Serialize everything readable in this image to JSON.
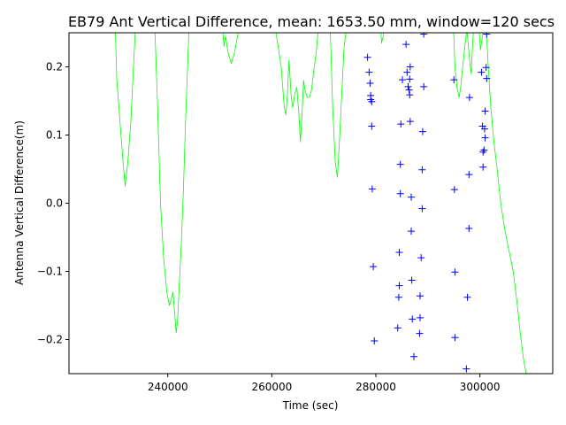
{
  "chart_data": {
    "type": "line",
    "title": "EB79 Ant Vertical Difference, mean: 1653.50 mm, window=120 secs",
    "xlabel": "Time (sec)",
    "ylabel": "Antenna Vertical Difference(m)",
    "xlim": [
      221000,
      314000
    ],
    "ylim": [
      -0.25,
      0.25
    ],
    "xticks": [
      {
        "value": 240000,
        "label": "240000"
      },
      {
        "value": 260000,
        "label": "260000"
      },
      {
        "value": 280000,
        "label": "280000"
      },
      {
        "value": 300000,
        "label": "300000"
      }
    ],
    "yticks": [
      {
        "value": -0.2,
        "label": "−0.2"
      },
      {
        "value": -0.1,
        "label": "−0.1"
      },
      {
        "value": 0.0,
        "label": "0.0"
      },
      {
        "value": 0.1,
        "label": "0.1"
      },
      {
        "value": 0.2,
        "label": "0.2"
      }
    ],
    "grid": false,
    "series": [
      {
        "type": "line",
        "color": "#00ff00",
        "x": [
          229900,
          230200,
          230600,
          231000,
          231400,
          231800,
          232300,
          232900,
          233400,
          233800,
          237500,
          238000,
          238600,
          239200,
          239800,
          240300,
          240700,
          241000,
          241300,
          241600,
          241900,
          242200,
          242600,
          243000,
          243400,
          243800,
          244100,
          250500,
          250800,
          251100,
          251600,
          252200,
          252800,
          253400,
          253900,
          260600,
          261000,
          261400,
          261800,
          262100,
          262400,
          262700,
          263000,
          263300,
          263700,
          264000,
          264400,
          264800,
          265200,
          265500,
          265800,
          266100,
          266400,
          266800,
          267200,
          267600,
          268000,
          268500,
          269000,
          271200,
          271700,
          272200,
          272600,
          273000,
          273500,
          273900,
          274400,
          280900,
          281100,
          281400,
          281700,
          294900,
          295200,
          295600,
          296000,
          296300,
          296700,
          297100,
          297500,
          297900,
          298300,
          298800,
          299800,
          300100,
          300400,
          300800,
          301200,
          301600,
          302100,
          302700,
          303300,
          304000,
          304800,
          305600,
          306400,
          307200,
          307900,
          308400,
          308900,
          309100
        ],
        "y": [
          0.26,
          0.18,
          0.14,
          0.1,
          0.06,
          0.025,
          0.06,
          0.12,
          0.2,
          0.26,
          0.26,
          0.15,
          0.0,
          -0.08,
          -0.13,
          -0.15,
          -0.14,
          -0.13,
          -0.16,
          -0.19,
          -0.17,
          -0.12,
          -0.06,
          0.02,
          0.12,
          0.2,
          0.26,
          0.26,
          0.23,
          0.245,
          0.22,
          0.205,
          0.22,
          0.245,
          0.26,
          0.26,
          0.24,
          0.22,
          0.2,
          0.17,
          0.14,
          0.13,
          0.16,
          0.21,
          0.16,
          0.14,
          0.16,
          0.17,
          0.13,
          0.09,
          0.13,
          0.18,
          0.165,
          0.155,
          0.155,
          0.165,
          0.19,
          0.22,
          0.26,
          0.26,
          0.14,
          0.06,
          0.038,
          0.09,
          0.17,
          0.23,
          0.26,
          0.26,
          0.235,
          0.245,
          0.26,
          0.26,
          0.2,
          0.17,
          0.155,
          0.17,
          0.2,
          0.23,
          0.255,
          0.22,
          0.19,
          0.26,
          0.26,
          0.225,
          0.24,
          0.26,
          0.26,
          0.2,
          0.14,
          0.09,
          0.05,
          0.0,
          -0.04,
          -0.07,
          -0.1,
          -0.15,
          -0.2,
          -0.23,
          -0.25,
          -0.26
        ]
      },
      {
        "type": "scatter",
        "marker": "+",
        "color": "#0000ff",
        "points": [
          [
            278400,
            0.214
          ],
          [
            278700,
            0.192
          ],
          [
            278900,
            0.176
          ],
          [
            279000,
            0.158
          ],
          [
            279000,
            0.152
          ],
          [
            279200,
            0.149
          ],
          [
            279200,
            0.113
          ],
          [
            279300,
            0.021
          ],
          [
            279500,
            -0.093
          ],
          [
            279700,
            -0.202
          ],
          [
            284200,
            -0.183
          ],
          [
            284400,
            -0.138
          ],
          [
            284500,
            -0.121
          ],
          [
            284500,
            -0.072
          ],
          [
            284700,
            0.014
          ],
          [
            284700,
            0.057
          ],
          [
            284800,
            0.116
          ],
          [
            285100,
            0.181
          ],
          [
            285800,
            0.233
          ],
          [
            286000,
            0.192
          ],
          [
            286200,
            0.171
          ],
          [
            286400,
            0.166
          ],
          [
            286500,
            0.182
          ],
          [
            286500,
            0.159
          ],
          [
            286600,
            0.2
          ],
          [
            286600,
            0.12
          ],
          [
            286800,
            0.009
          ],
          [
            286800,
            -0.041
          ],
          [
            286900,
            -0.113
          ],
          [
            287000,
            -0.17
          ],
          [
            287300,
            -0.225
          ],
          [
            288400,
            -0.191
          ],
          [
            288500,
            -0.136
          ],
          [
            288500,
            -0.168
          ],
          [
            288700,
            -0.08
          ],
          [
            288900,
            -0.008
          ],
          [
            288900,
            0.049
          ],
          [
            289000,
            0.105
          ],
          [
            289200,
            0.171
          ],
          [
            289200,
            0.248
          ],
          [
            295000,
            0.181
          ],
          [
            295100,
            0.02
          ],
          [
            295200,
            -0.101
          ],
          [
            295200,
            -0.197
          ],
          [
            297400,
            -0.243
          ],
          [
            297600,
            -0.138
          ],
          [
            297900,
            -0.037
          ],
          [
            297900,
            0.042
          ],
          [
            298000,
            0.155
          ],
          [
            300300,
            0.192
          ],
          [
            300500,
            0.113
          ],
          [
            300600,
            0.075
          ],
          [
            300600,
            0.053
          ],
          [
            300800,
            0.078
          ],
          [
            300900,
            0.109
          ],
          [
            301000,
            0.096
          ],
          [
            301000,
            0.135
          ],
          [
            301200,
            0.199
          ],
          [
            301300,
            0.183
          ],
          [
            301300,
            0.248
          ]
        ]
      }
    ]
  }
}
